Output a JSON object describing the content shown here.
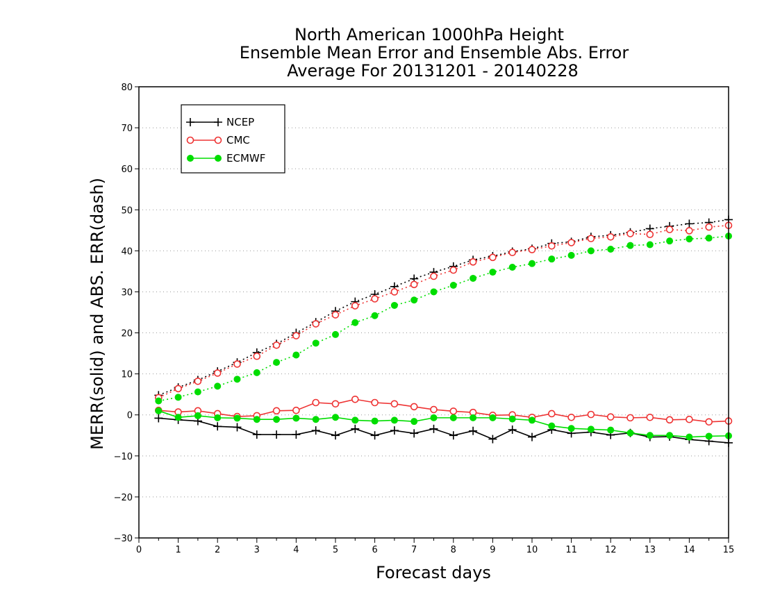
{
  "chart_data": {
    "type": "line",
    "title_lines": [
      "North American 1000hPa Height",
      "Ensemble Mean Error and Ensemble Abs. Error",
      "Average For 20131201 - 20140228"
    ],
    "xlabel": "Forecast days",
    "ylabel": "MERR(solid) and ABS. ERR(dash)",
    "xlim": [
      0,
      15
    ],
    "ylim": [
      -30,
      80
    ],
    "xticks": [
      0,
      1,
      2,
      3,
      4,
      5,
      6,
      7,
      8,
      9,
      10,
      11,
      12,
      13,
      14,
      15
    ],
    "yticks": [
      -30,
      -20,
      -10,
      0,
      10,
      20,
      30,
      40,
      50,
      60,
      70,
      80
    ],
    "ytick_labels": [
      "−30",
      "−20",
      "−10",
      "0",
      "10",
      "20",
      "30",
      "40",
      "50",
      "60",
      "70",
      "80"
    ],
    "grid": "horizontal-dotted",
    "legend_position": "top-left",
    "x": [
      0.5,
      1,
      1.5,
      2,
      2.5,
      3,
      3.5,
      4,
      4.5,
      5,
      5.5,
      6,
      6.5,
      7,
      7.5,
      8,
      8.5,
      9,
      9.5,
      10,
      10.5,
      11,
      11.5,
      12,
      12.5,
      13,
      13.5,
      14,
      14.5,
      15
    ],
    "series": [
      {
        "name": "NCEP",
        "color": "#000000",
        "marker": "plus",
        "merr": [
          -0.8,
          -1.2,
          -1.5,
          -2.8,
          -3.0,
          -4.8,
          -4.8,
          -4.8,
          -3.8,
          -5.0,
          -3.4,
          -5.0,
          -3.8,
          -4.5,
          -3.4,
          -5.0,
          -3.9,
          -5.9,
          -3.6,
          -5.4,
          -3.6,
          -4.5,
          -4.2,
          -4.9,
          -4.4,
          -5.4,
          -5.3,
          -6.0,
          -6.4,
          -6.8
        ],
        "abs_err": [
          4.8,
          6.7,
          8.5,
          10.6,
          12.8,
          15.2,
          17.3,
          20.0,
          22.6,
          25.3,
          27.6,
          29.4,
          31.3,
          33.2,
          34.8,
          36.2,
          37.8,
          38.7,
          39.8,
          40.5,
          41.8,
          42.2,
          43.4,
          43.8,
          44.5,
          45.4,
          46.0,
          46.6,
          46.9,
          47.6
        ]
      },
      {
        "name": "CMC",
        "color": "#ee3333",
        "marker": "open-circle",
        "merr": [
          1.1,
          0.7,
          1.0,
          0.3,
          -0.4,
          -0.2,
          1.0,
          1.1,
          3.0,
          2.7,
          3.8,
          3.0,
          2.7,
          2.0,
          1.3,
          0.9,
          0.6,
          -0.1,
          0.0,
          -0.6,
          0.3,
          -0.6,
          0.1,
          -0.5,
          -0.7,
          -0.6,
          -1.2,
          -1.1,
          -1.7,
          -1.5
        ],
        "abs_err": [
          4.2,
          6.4,
          8.2,
          10.2,
          12.4,
          14.3,
          17.0,
          19.3,
          22.2,
          24.4,
          26.6,
          28.3,
          30.0,
          31.8,
          33.8,
          35.3,
          37.3,
          38.4,
          39.6,
          40.3,
          41.2,
          42.0,
          43.0,
          43.4,
          44.2,
          44.0,
          45.2,
          44.9,
          45.8,
          46.2
        ]
      },
      {
        "name": "ECMWF",
        "color": "#00dd00",
        "marker": "filled-circle",
        "merr": [
          1.0,
          -0.6,
          -0.2,
          -0.7,
          -0.8,
          -1.1,
          -1.1,
          -0.8,
          -1.1,
          -0.6,
          -1.3,
          -1.5,
          -1.3,
          -1.6,
          -0.7,
          -0.7,
          -0.7,
          -0.7,
          -1.0,
          -1.3,
          -2.7,
          -3.3,
          -3.5,
          -3.7,
          -4.4,
          -5.0,
          -5.0,
          -5.4,
          -5.2,
          -5.1
        ],
        "abs_err": [
          3.4,
          4.3,
          5.6,
          7.0,
          8.7,
          10.3,
          12.8,
          14.6,
          17.5,
          19.6,
          22.5,
          24.2,
          26.7,
          28.0,
          30.0,
          31.6,
          33.3,
          34.8,
          36.0,
          36.9,
          38.0,
          38.9,
          40.0,
          40.4,
          41.3,
          41.5,
          42.4,
          42.9,
          43.1,
          43.6
        ]
      }
    ]
  }
}
